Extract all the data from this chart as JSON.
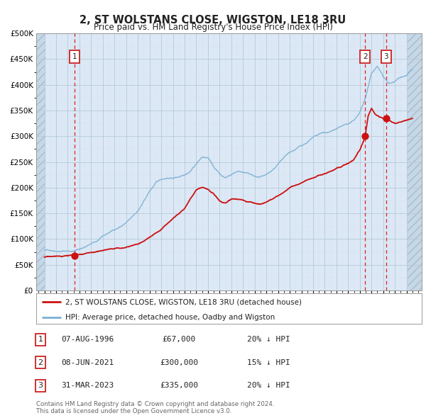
{
  "title": "2, ST WOLSTANS CLOSE, WIGSTON, LE18 3RU",
  "subtitle": "Price paid vs. HM Land Registry's House Price Index (HPI)",
  "hpi_color": "#7ab0d4",
  "price_color": "#cc1111",
  "background_color": "#ffffff",
  "plot_bg_color": "#dce8f5",
  "grid_color": "#b8cfe0",
  "hatch_bg_color": "#c8dcea",
  "ylim": [
    0,
    500000
  ],
  "yticks": [
    0,
    50000,
    100000,
    150000,
    200000,
    250000,
    300000,
    350000,
    400000,
    450000,
    500000
  ],
  "xlim_start": 1993.3,
  "xlim_end": 2026.3,
  "hatch_left_end": 1994.08,
  "hatch_right_start": 2025.08,
  "sales": [
    {
      "year": 1996.6,
      "price": 67000,
      "label": "1"
    },
    {
      "year": 2021.45,
      "price": 300000,
      "label": "2"
    },
    {
      "year": 2023.25,
      "price": 335000,
      "label": "3"
    }
  ],
  "vlines": [
    1996.6,
    2021.45,
    2023.25
  ],
  "legend_property": "2, ST WOLSTANS CLOSE, WIGSTON, LE18 3RU (detached house)",
  "legend_hpi": "HPI: Average price, detached house, Oadby and Wigston",
  "table_rows": [
    {
      "num": "1",
      "date": "07-AUG-1996",
      "price": "£67,000",
      "note": "20% ↓ HPI"
    },
    {
      "num": "2",
      "date": "08-JUN-2021",
      "price": "£300,000",
      "note": "15% ↓ HPI"
    },
    {
      "num": "3",
      "date": "31-MAR-2023",
      "price": "£335,000",
      "note": "20% ↓ HPI"
    }
  ],
  "footnote": "Contains HM Land Registry data © Crown copyright and database right 2024.\nThis data is licensed under the Open Government Licence v3.0."
}
